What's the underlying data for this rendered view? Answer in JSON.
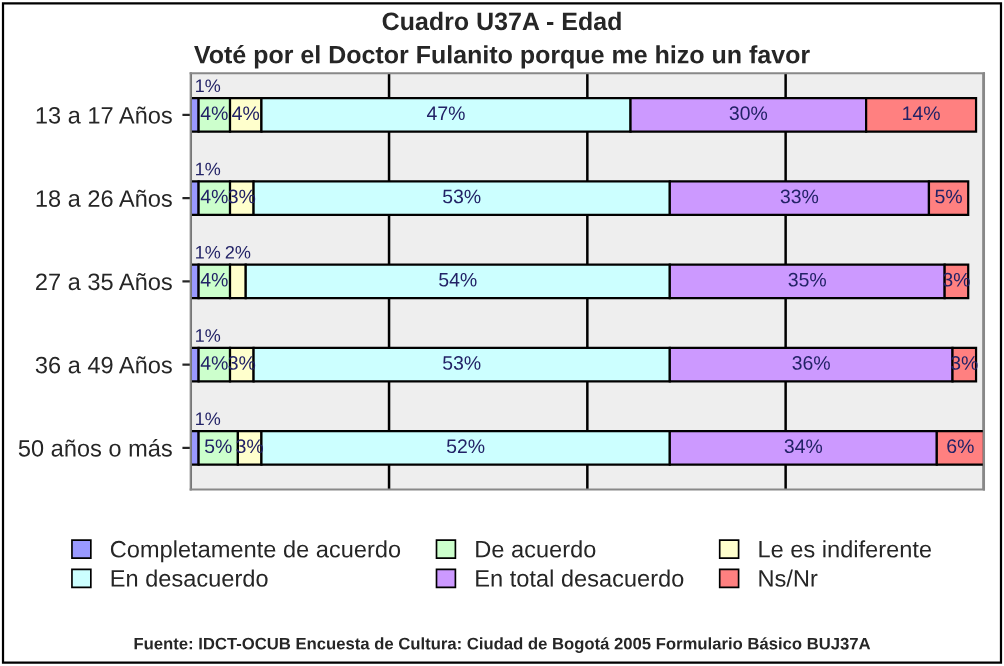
{
  "chart_data": {
    "type": "bar",
    "title": "Cuadro U37A - Edad",
    "subtitle": "Voté por el Doctor Fulanito porque me hizo un favor",
    "orientation": "horizontal",
    "stacked": true,
    "categories": [
      "13 a 17 Años",
      "18 a 26 Años",
      "27 a 35 Años",
      "36 a 49 Años",
      "50 años o más"
    ],
    "series": [
      {
        "name": "Completamente de acuerdo",
        "color": "#9999ff",
        "values": [
          1,
          1,
          1,
          1,
          1
        ],
        "value_labels": [
          "1%",
          "1%",
          "1%",
          "1%",
          "1%"
        ]
      },
      {
        "name": "De acuerdo",
        "color": "#ccffcc",
        "values": [
          4,
          4,
          4,
          4,
          5
        ],
        "value_labels": [
          "4%",
          "4%",
          "4%",
          "4%",
          "5%"
        ]
      },
      {
        "name": "Le es indiferente",
        "color": "#ffffcc",
        "values": [
          4,
          3,
          2,
          3,
          3
        ],
        "value_labels": [
          "4%",
          "3%",
          "2%",
          "3%",
          "3%"
        ]
      },
      {
        "name": "En desacuerdo",
        "color": "#ccffff",
        "values": [
          47,
          53,
          54,
          53,
          52
        ],
        "value_labels": [
          "47%",
          "53%",
          "54%",
          "53%",
          "52%"
        ]
      },
      {
        "name": "En total desacuerdo",
        "color": "#cc99ff",
        "values": [
          30,
          33,
          35,
          36,
          34
        ],
        "value_labels": [
          "30%",
          "33%",
          "35%",
          "36%",
          "34%"
        ]
      },
      {
        "name": "Ns/Nr",
        "color": "#ff8080",
        "values": [
          14,
          5,
          3,
          3,
          6
        ],
        "value_labels": [
          "14%",
          "5%",
          "3%",
          "3%",
          "6%"
        ]
      }
    ],
    "tick_labels": "y",
    "grid": "x",
    "legend": "bottom",
    "annotations": [
      "Fuente: IDCT-OCUB Encuesta de Cultura: Ciudad de Bogotá 2005 Formulario Básico BUJ37A"
    ]
  }
}
